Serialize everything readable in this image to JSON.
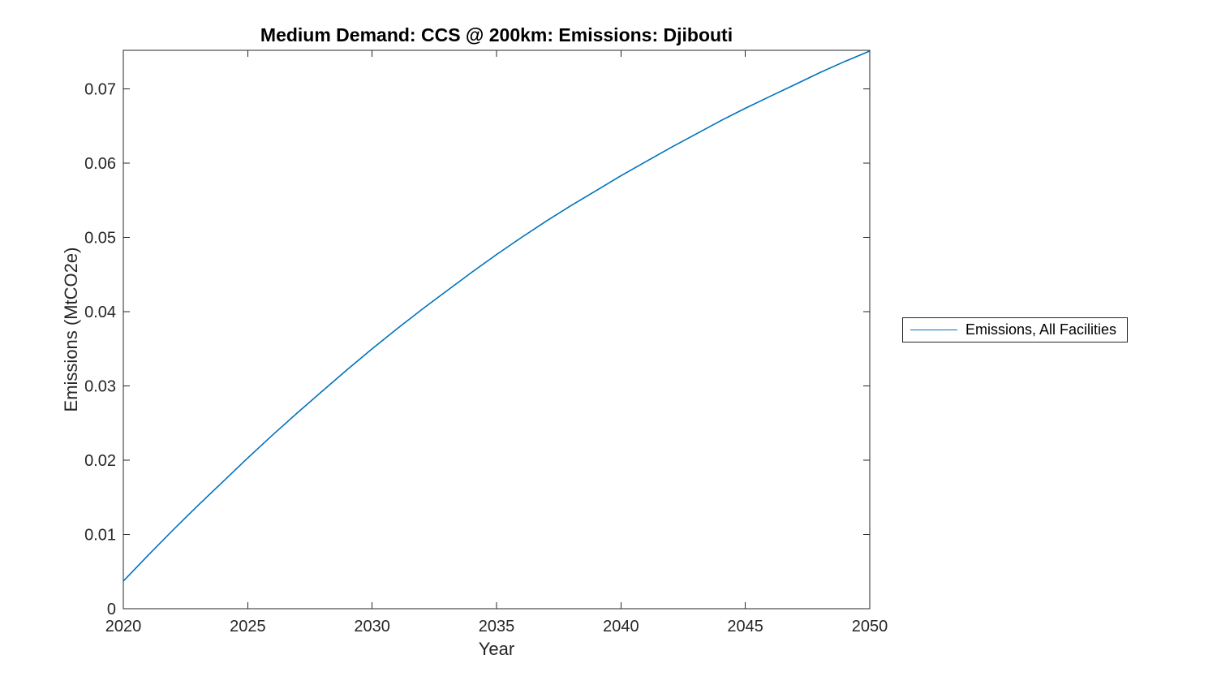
{
  "chart_data": {
    "type": "line",
    "title": "Medium Demand: CCS @ 200km: Emissions: Djibouti",
    "xlabel": "Year",
    "ylabel": "Emissions (MtCO2e)",
    "xlim": [
      2020,
      2050
    ],
    "ylim": [
      0,
      0.0752
    ],
    "xticks": [
      2020,
      2025,
      2030,
      2035,
      2040,
      2045,
      2050
    ],
    "yticks": {
      "values": [
        0,
        0.01,
        0.02,
        0.03,
        0.04,
        0.05,
        0.06,
        0.07
      ],
      "labels": [
        "0",
        "0.01",
        "0.02",
        "0.03",
        "0.04",
        "0.05",
        "0.06",
        "0.07"
      ]
    },
    "grid": false,
    "x": [
      2020,
      2021,
      2022,
      2023,
      2024,
      2025,
      2026,
      2027,
      2028,
      2029,
      2030,
      2031,
      2032,
      2033,
      2034,
      2035,
      2036,
      2037,
      2038,
      2039,
      2040,
      2041,
      2042,
      2043,
      2044,
      2045,
      2046,
      2047,
      2048,
      2049,
      2050
    ],
    "series": [
      {
        "name": "Emissions, All Facilities",
        "color": "#0072BD",
        "values": [
          0.0037,
          0.0072,
          0.0106,
          0.0139,
          0.0171,
          0.0203,
          0.0234,
          0.0264,
          0.0293,
          0.0322,
          0.035,
          0.0377,
          0.0403,
          0.0428,
          0.0453,
          0.0477,
          0.05,
          0.0522,
          0.0543,
          0.0563,
          0.0583,
          0.0602,
          0.0621,
          0.0639,
          0.0657,
          0.0674,
          0.069,
          0.0706,
          0.0722,
          0.0737,
          0.0751
        ]
      }
    ],
    "legend": {
      "position": "outside-right",
      "entries": [
        "Emissions, All Facilities"
      ]
    },
    "axis_color": "#262626",
    "line_color": "#0072BD",
    "background": "#ffffff"
  }
}
